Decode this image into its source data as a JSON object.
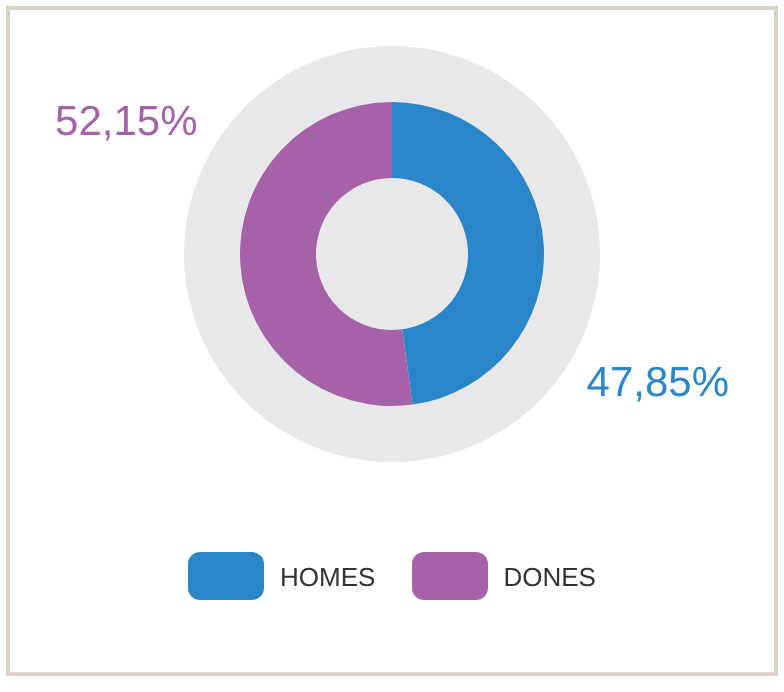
{
  "chart_data": {
    "type": "donut",
    "categories": [
      "HOMES",
      "DONES"
    ],
    "values": [
      47.85,
      52.15
    ],
    "colors": [
      "#2a86c8",
      "#a562a8"
    ],
    "value_labels": [
      "47,85%",
      "52,15%"
    ],
    "legend": "bottom"
  }
}
